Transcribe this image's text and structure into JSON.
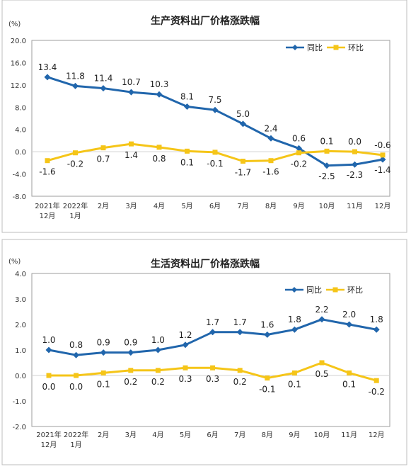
{
  "chart_data": [
    {
      "type": "line",
      "title": "生产资料出厂价格涨跌幅",
      "ylabel": "(%)",
      "ylim": [
        -8.0,
        20.0
      ],
      "y_ticks": [
        "-8.0",
        "-4.0",
        "0.0",
        "4.0",
        "8.0",
        "12.0",
        "16.0",
        "20.0"
      ],
      "categories": [
        [
          "2021年",
          "12月"
        ],
        [
          "2022年",
          "1月"
        ],
        [
          "2月"
        ],
        [
          "3月"
        ],
        [
          "4月"
        ],
        [
          "5月"
        ],
        [
          "6月"
        ],
        [
          "7月"
        ],
        [
          "8月"
        ],
        [
          "9月"
        ],
        [
          "10月"
        ],
        [
          "11月"
        ],
        [
          "12月"
        ]
      ],
      "legend_position": "top-right",
      "series": [
        {
          "name": "同比",
          "color": "#2166ac",
          "marker": "diamond",
          "values": [
            13.4,
            11.8,
            11.4,
            10.7,
            10.3,
            8.1,
            7.5,
            5.0,
            2.4,
            0.6,
            -2.5,
            -2.3,
            -1.4
          ],
          "labels": [
            "13.4",
            "11.8",
            "11.4",
            "10.7",
            "10.3",
            "8.1",
            "7.5",
            "5.0",
            "2.4",
            "0.6",
            "-2.5",
            "-2.3",
            "-1.4"
          ]
        },
        {
          "name": "环比",
          "color": "#f5c518",
          "marker": "square",
          "values": [
            -1.6,
            -0.2,
            0.7,
            1.4,
            0.8,
            0.1,
            -0.1,
            -1.7,
            -1.6,
            -0.2,
            0.1,
            0.0,
            -0.6
          ],
          "labels": [
            "-1.6",
            "-0.2",
            "0.7",
            "1.4",
            "0.8",
            "0.1",
            "-0.1",
            "-1.7",
            "-1.6",
            "-0.2",
            "0.1",
            "0.0",
            "-0.6"
          ]
        }
      ]
    },
    {
      "type": "line",
      "title": "生活资料出厂价格涨跌幅",
      "ylabel": "(%)",
      "ylim": [
        -2.0,
        4.0
      ],
      "y_ticks": [
        "-2.0",
        "-1.0",
        "0.0",
        "1.0",
        "2.0",
        "3.0",
        "4.0"
      ],
      "categories": [
        [
          "2021年",
          "12月"
        ],
        [
          "2022年",
          "1月"
        ],
        [
          "2月"
        ],
        [
          "3月"
        ],
        [
          "4月"
        ],
        [
          "5月"
        ],
        [
          "6月"
        ],
        [
          "7月"
        ],
        [
          "8月"
        ],
        [
          "9月"
        ],
        [
          "10月"
        ],
        [
          "11月"
        ],
        [
          "12月"
        ]
      ],
      "legend_position": "top-right",
      "series": [
        {
          "name": "同比",
          "color": "#2166ac",
          "marker": "diamond",
          "values": [
            1.0,
            0.8,
            0.9,
            0.9,
            1.0,
            1.2,
            1.7,
            1.7,
            1.6,
            1.8,
            2.2,
            2.0,
            1.8
          ],
          "labels": [
            "1.0",
            "0.8",
            "0.9",
            "0.9",
            "1.0",
            "1.2",
            "1.7",
            "1.7",
            "1.6",
            "1.8",
            "2.2",
            "2.0",
            "1.8"
          ]
        },
        {
          "name": "环比",
          "color": "#f5c518",
          "marker": "square",
          "values": [
            0.0,
            0.0,
            0.1,
            0.2,
            0.2,
            0.3,
            0.3,
            0.2,
            -0.1,
            0.1,
            0.5,
            0.1,
            -0.2
          ],
          "labels": [
            "0.0",
            "0.0",
            "0.1",
            "0.2",
            "0.2",
            "0.3",
            "0.3",
            "0.2",
            "-0.1",
            "0.1",
            "0.5",
            "0.1",
            "-0.2"
          ]
        }
      ]
    }
  ]
}
